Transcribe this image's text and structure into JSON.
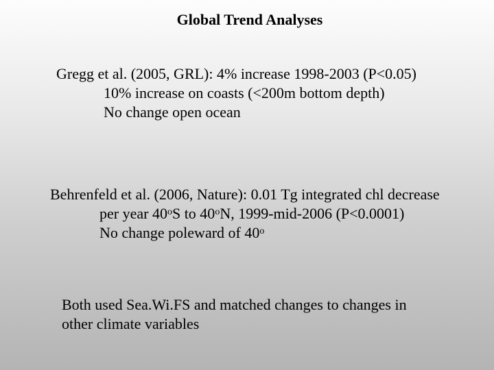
{
  "title": "Global Trend Analyses",
  "gregg": {
    "line1": "Gregg et al. (2005, GRL):  4% increase 1998-2003 (P<0.05)",
    "line2": "10% increase on coasts (<200m bottom depth)",
    "line3": "No change open ocean"
  },
  "behrenfeld": {
    "line1": "Behrenfeld et al. (2006, Nature): 0.01 Tg integrated chl decrease",
    "line2_a": "per year 40",
    "deg": "o",
    "line2_b": "S to 40",
    "line2_c": "N, 1999-mid-2006 (P<0.0001)",
    "line3_a": "No change poleward of 40"
  },
  "conclusion": {
    "line1": "Both used Sea.Wi.FS and matched changes to changes in",
    "line2": "other climate variables"
  }
}
